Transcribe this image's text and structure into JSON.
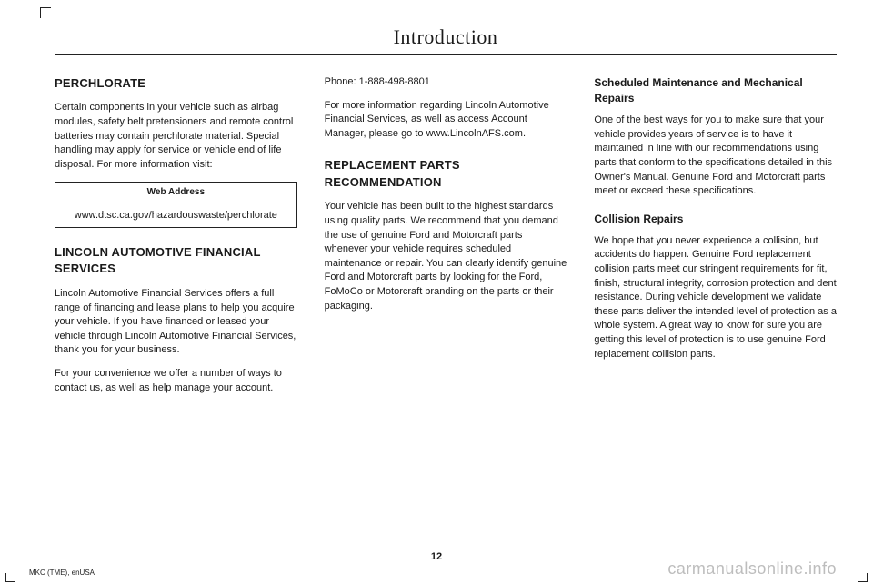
{
  "header": {
    "title": "Introduction"
  },
  "col1": {
    "perchlorate": {
      "heading": "PERCHLORATE",
      "body": "Certain components in your vehicle such as airbag modules, safety belt pretensioners and remote control batteries may contain perchlorate material. Special handling may apply for service or vehicle end of life disposal. For more information visit:",
      "table_header": "Web Address",
      "table_value": "www.dtsc.ca.gov/hazardouswaste/perchlorate"
    },
    "lafs": {
      "heading": "LINCOLN AUTOMOTIVE FINANCIAL SERVICES",
      "p1": "Lincoln Automotive Financial Services offers a full range of financing and lease plans to help you acquire your vehicle. If you have financed or leased your vehicle through Lincoln Automotive Financial Services, thank you for your business.",
      "p2": "For your convenience we offer a number of ways to contact us, as well as help manage your account."
    }
  },
  "col2": {
    "phone": "Phone: 1-888-498-8801",
    "info": "For more information regarding Lincoln Automotive Financial Services, as well as access Account Manager, please go to www.LincolnAFS.com.",
    "replacement": {
      "heading": "REPLACEMENT PARTS RECOMMENDATION",
      "body": "Your vehicle has been built to the highest standards using quality parts. We recommend that you demand the use of genuine Ford and Motorcraft parts whenever your vehicle requires scheduled maintenance or repair. You can clearly identify genuine Ford and Motorcraft parts by looking for the Ford, FoMoCo or Motorcraft branding on the parts or their packaging."
    }
  },
  "col3": {
    "scheduled": {
      "heading": "Scheduled Maintenance and Mechanical Repairs",
      "body": "One of the best ways for you to make sure that your vehicle provides years of service is to have it maintained in line with our recommendations using parts that conform to the specifications detailed in this Owner's Manual. Genuine Ford and Motorcraft parts meet or exceed these specifications."
    },
    "collision": {
      "heading": "Collision Repairs",
      "body": "We hope that you never experience a collision, but accidents do happen. Genuine Ford replacement collision parts meet our stringent requirements for fit, finish, structural integrity, corrosion protection and dent resistance. During vehicle development we validate these parts deliver the intended level of protection as a whole system. A great way to know for sure you are getting this level of protection is to use genuine Ford replacement collision parts."
    }
  },
  "page_number": "12",
  "footer_left": "MKC (TME), enUSA",
  "footer_right": "carmanualsonline.info"
}
